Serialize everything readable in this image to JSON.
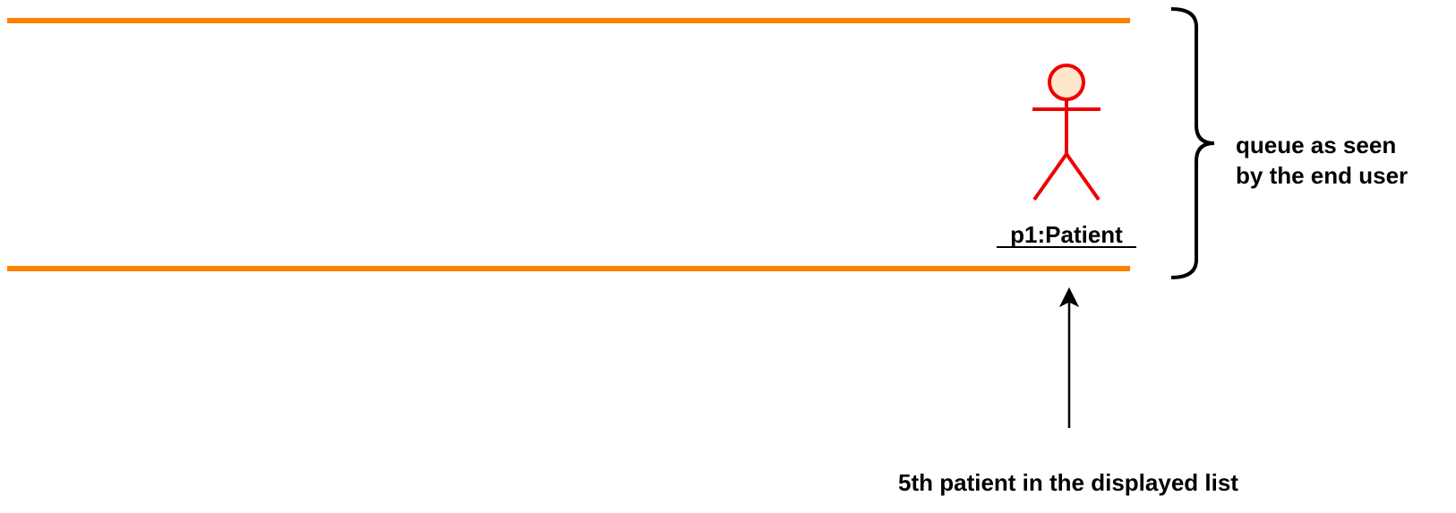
{
  "diagram": {
    "actor": {
      "label": "p1:Patient",
      "color": "#ee0000",
      "head_fill": "#ffe6cc"
    },
    "queue": {
      "line_color": "#ff8000",
      "brace_label_line1": "queue as seen",
      "brace_label_line2": "by the end user"
    },
    "pointer": {
      "label": "5th patient in the displayed list"
    }
  }
}
